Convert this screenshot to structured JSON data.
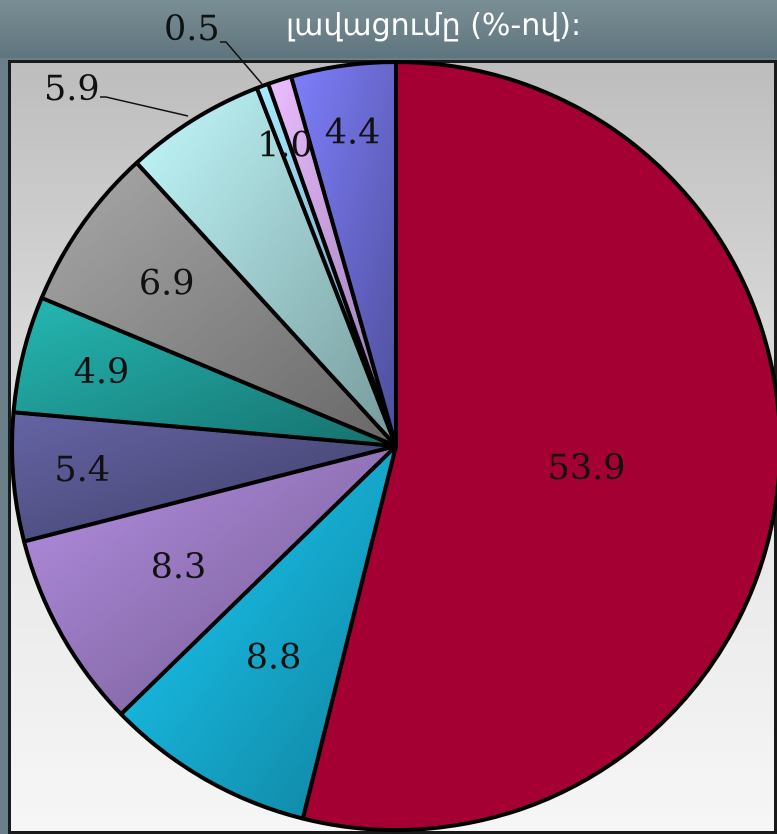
{
  "title": "լավացումը (%-ով):",
  "chart_data": {
    "type": "pie",
    "title": "լավացումը (%-ով):",
    "slices": [
      {
        "label": "53.9",
        "value": 53.9,
        "color": "#a50034"
      },
      {
        "label": "8.8",
        "value": 8.8,
        "color": "#16b0d6"
      },
      {
        "label": "8.3",
        "value": 8.3,
        "color": "#9a7ac2"
      },
      {
        "label": "5.4",
        "value": 5.4,
        "color": "#56558c"
      },
      {
        "label": "4.9",
        "value": 4.9,
        "color": "#1f9c98"
      },
      {
        "label": "6.9",
        "value": 6.9,
        "color": "#8f8f8f"
      },
      {
        "label": "5.9",
        "value": 5.9,
        "color": "#a4d4d6"
      },
      {
        "label": "0.5",
        "value": 0.5,
        "color": "#8ec8f0"
      },
      {
        "label": "1.0",
        "value": 1.0,
        "color": "#c9a2f0"
      },
      {
        "label": "4.4",
        "value": 4.4,
        "color": "#6c6cd6"
      }
    ],
    "start": "12 o'clock",
    "direction": "clockwise",
    "legend": "none"
  }
}
